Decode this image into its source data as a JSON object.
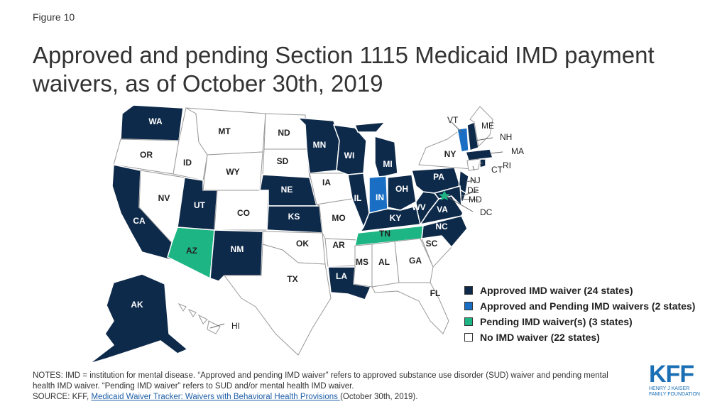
{
  "figure_label": "Figure 10",
  "title": "Approved and pending Section 1115 Medicaid IMD payment waivers, as of October 30th, 2019",
  "colors": {
    "approved": "#0e2a4a",
    "approved_pending": "#1a6fc4",
    "pending": "#1db584",
    "none": "#ffffff"
  },
  "legend": [
    {
      "category": "approved",
      "label": "Approved IMD waiver (24 states)"
    },
    {
      "category": "approved_pending",
      "label": "Approved and Pending IMD waivers (2 states)"
    },
    {
      "category": "pending",
      "label": "Pending IMD waiver(s) (3 states)"
    },
    {
      "category": "none",
      "label": "No IMD waiver (22 states)"
    }
  ],
  "states": {
    "WA": "approved",
    "OR": "none",
    "CA": "approved",
    "AK": "approved",
    "HI": "none",
    "ID": "none",
    "NV": "none",
    "AZ": "pending",
    "MT": "none",
    "WY": "none",
    "UT": "approved",
    "CO": "none",
    "NM": "approved",
    "ND": "none",
    "SD": "none",
    "NE": "approved",
    "KS": "approved",
    "OK": "none",
    "TX": "none",
    "MN": "approved",
    "IA": "none",
    "MO": "none",
    "AR": "none",
    "LA": "approved",
    "WI": "approved",
    "IL": "approved",
    "MI": "approved",
    "IN": "approved_pending",
    "OH": "approved",
    "KY": "approved",
    "TN": "pending",
    "MS": "none",
    "AL": "none",
    "GA": "none",
    "FL": "none",
    "SC": "none",
    "NC": "approved",
    "VA": "approved",
    "WV": "approved",
    "PA": "approved",
    "NY": "none",
    "VT": "approved_pending",
    "NH": "approved",
    "ME": "none",
    "MA": "approved",
    "RI": "approved",
    "CT": "none",
    "NJ": "approved",
    "DE": "approved",
    "MD": "approved",
    "DC": "pending"
  },
  "notes": "NOTES: IMD = institution for mental disease. “Approved and pending IMD waiver” refers to approved substance use disorder (SUD) waiver and pending mental health IMD waiver. “Pending IMD waiver” refers to SUD and/or mental health IMD waiver.",
  "source": {
    "prefix": "SOURCE: KFF, ",
    "link_text": "Medicaid Waiver Tracker: Waivers with Behavioral Health Provisions ",
    "suffix": "(October 30th, 2019)."
  },
  "logo": {
    "text": "KFF",
    "sub_line1": "HENRY J KAISER",
    "sub_line2": "FAMILY FOUNDATION"
  }
}
